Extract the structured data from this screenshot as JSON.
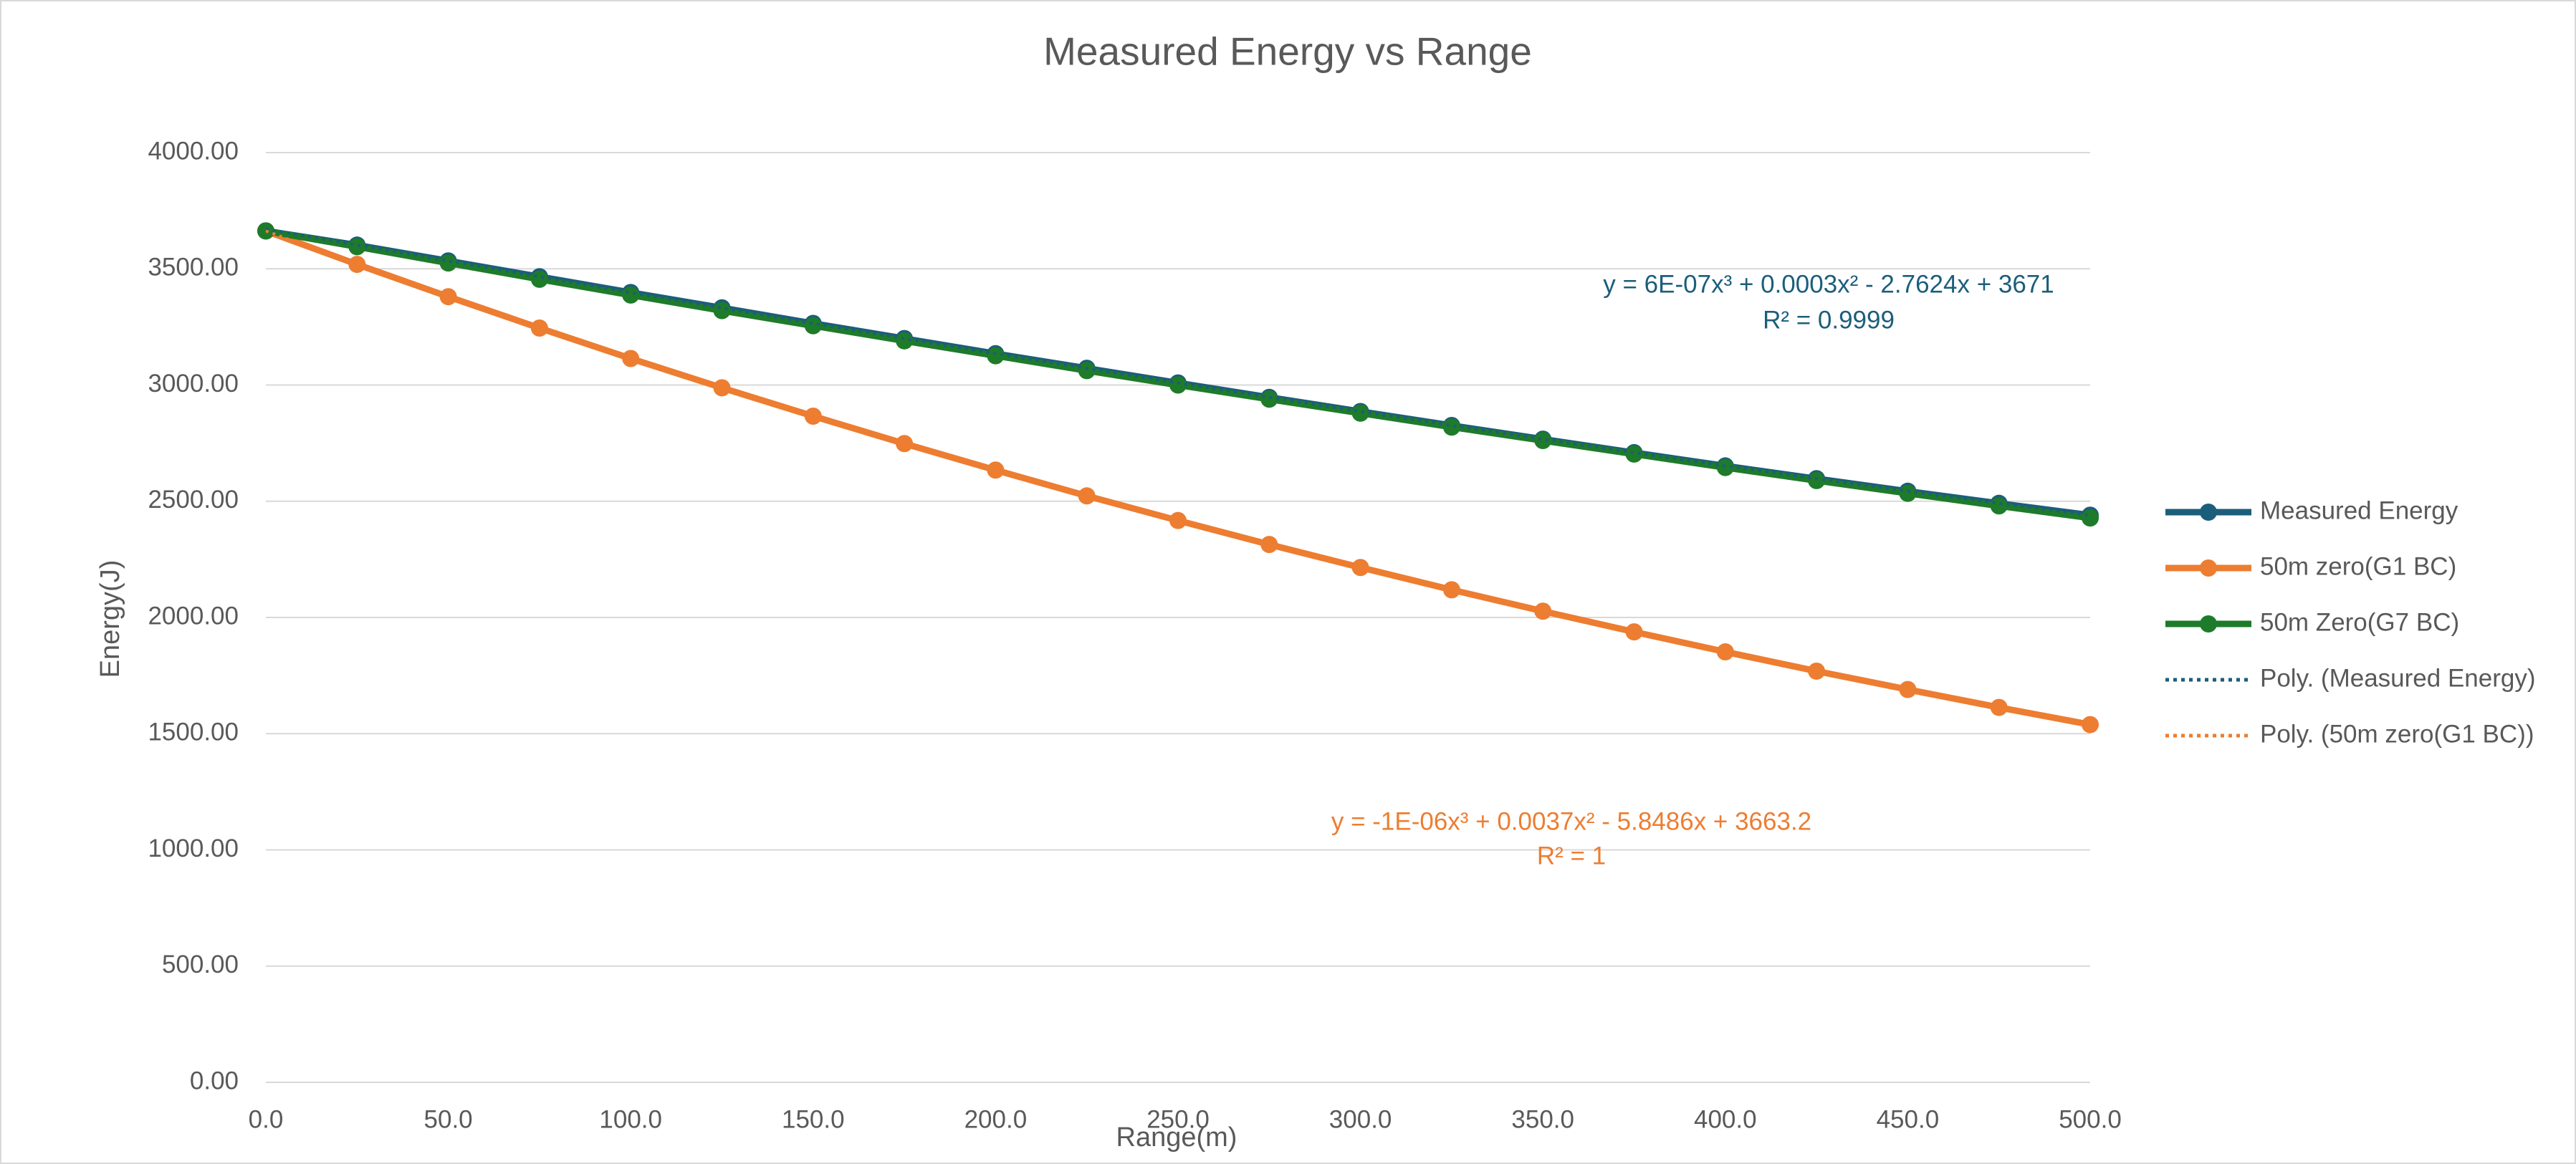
{
  "chart_data": {
    "type": "line",
    "title": "Measured Energy vs Range",
    "x_label": "Range(m)",
    "y_label": "Energy(J)",
    "x": [
      0,
      25,
      50,
      75,
      100,
      125,
      150,
      175,
      200,
      225,
      250,
      275,
      300,
      325,
      350,
      375,
      400,
      425,
      450,
      475,
      500
    ],
    "series": [
      {
        "name": "Measured Energy",
        "color": "#1b5e7b",
        "style": "solid",
        "values": [
          3663,
          3602,
          3534,
          3466,
          3398,
          3332,
          3265,
          3200,
          3135,
          3072,
          3009,
          2947,
          2886,
          2826,
          2767,
          2709,
          2652,
          2597,
          2543,
          2491,
          2440
        ]
      },
      {
        "name": "50m zero(G1 BC)",
        "color": "#ed7d31",
        "style": "solid",
        "values": [
          3663,
          3519,
          3380,
          3245,
          3114,
          2988,
          2866,
          2748,
          2634,
          2523,
          2417,
          2314,
          2215,
          2119,
          2027,
          1938,
          1852,
          1769,
          1690,
          1613,
          1539
        ]
      },
      {
        "name": "50m Zero(G7 BC)",
        "color": "#1e7b2a",
        "style": "solid",
        "values": [
          3663,
          3595,
          3525,
          3455,
          3387,
          3320,
          3255,
          3190,
          3126,
          3062,
          3000,
          2939,
          2879,
          2819,
          2761,
          2703,
          2645,
          2589,
          2534,
          2480,
          2428
        ]
      },
      {
        "name": "Poly. (Measured Energy)",
        "color": "#1b5e7b",
        "style": "dotted",
        "values": [
          3671,
          3602,
          3534,
          3466,
          3398,
          3332,
          3265,
          3200,
          3135,
          3072,
          3009,
          2947,
          2886,
          2826,
          2767,
          2709,
          2652,
          2597,
          2543,
          2491,
          2440
        ]
      },
      {
        "name": "Poly. (50m zero(G1 BC))",
        "color": "#ed7d31",
        "style": "dotted",
        "values": [
          3663,
          3519,
          3380,
          3245,
          3114,
          2988,
          2866,
          2748,
          2634,
          2523,
          2417,
          2314,
          2215,
          2119,
          2027,
          1938,
          1852,
          1769,
          1690,
          1613,
          1539
        ]
      }
    ],
    "annotations": [
      {
        "text": "y = 6E-07x³ + 0.0003x² - 2.7624x + 3671",
        "color": "#1b5e7b"
      },
      {
        "text": "R² = 0.9999",
        "color": "#1b5e7b"
      },
      {
        "text": "y = -1E-06x³ + 0.0037x² - 5.8486x + 3663.2",
        "color": "#ed7d31"
      },
      {
        "text": "R² = 1",
        "color": "#ed7d31"
      }
    ],
    "xlim": [
      0,
      500
    ],
    "xticks": [
      {
        "value": 0,
        "label": "0.0"
      },
      {
        "value": 50,
        "label": "50.0"
      },
      {
        "value": 100,
        "label": "100.0"
      },
      {
        "value": 150,
        "label": "150.0"
      },
      {
        "value": 200,
        "label": "200.0"
      },
      {
        "value": 250,
        "label": "250.0"
      },
      {
        "value": 300,
        "label": "300.0"
      },
      {
        "value": 350,
        "label": "350.0"
      },
      {
        "value": 400,
        "label": "400.0"
      },
      {
        "value": 450,
        "label": "450.0"
      },
      {
        "value": 500,
        "label": "500.0"
      }
    ],
    "ylim": [
      0,
      4000
    ],
    "yticks": [
      {
        "value": 0,
        "label": "0.00"
      },
      {
        "value": 500,
        "label": "500.00"
      },
      {
        "value": 1000,
        "label": "1000.00"
      },
      {
        "value": 1500,
        "label": "1500.00"
      },
      {
        "value": 2000,
        "label": "2000.00"
      },
      {
        "value": 2500,
        "label": "2500.00"
      },
      {
        "value": 3000,
        "label": "3000.00"
      },
      {
        "value": 3500,
        "label": "3500.00"
      },
      {
        "value": 4000,
        "label": "4000.00"
      }
    ],
    "grid": true,
    "legend": "right"
  }
}
